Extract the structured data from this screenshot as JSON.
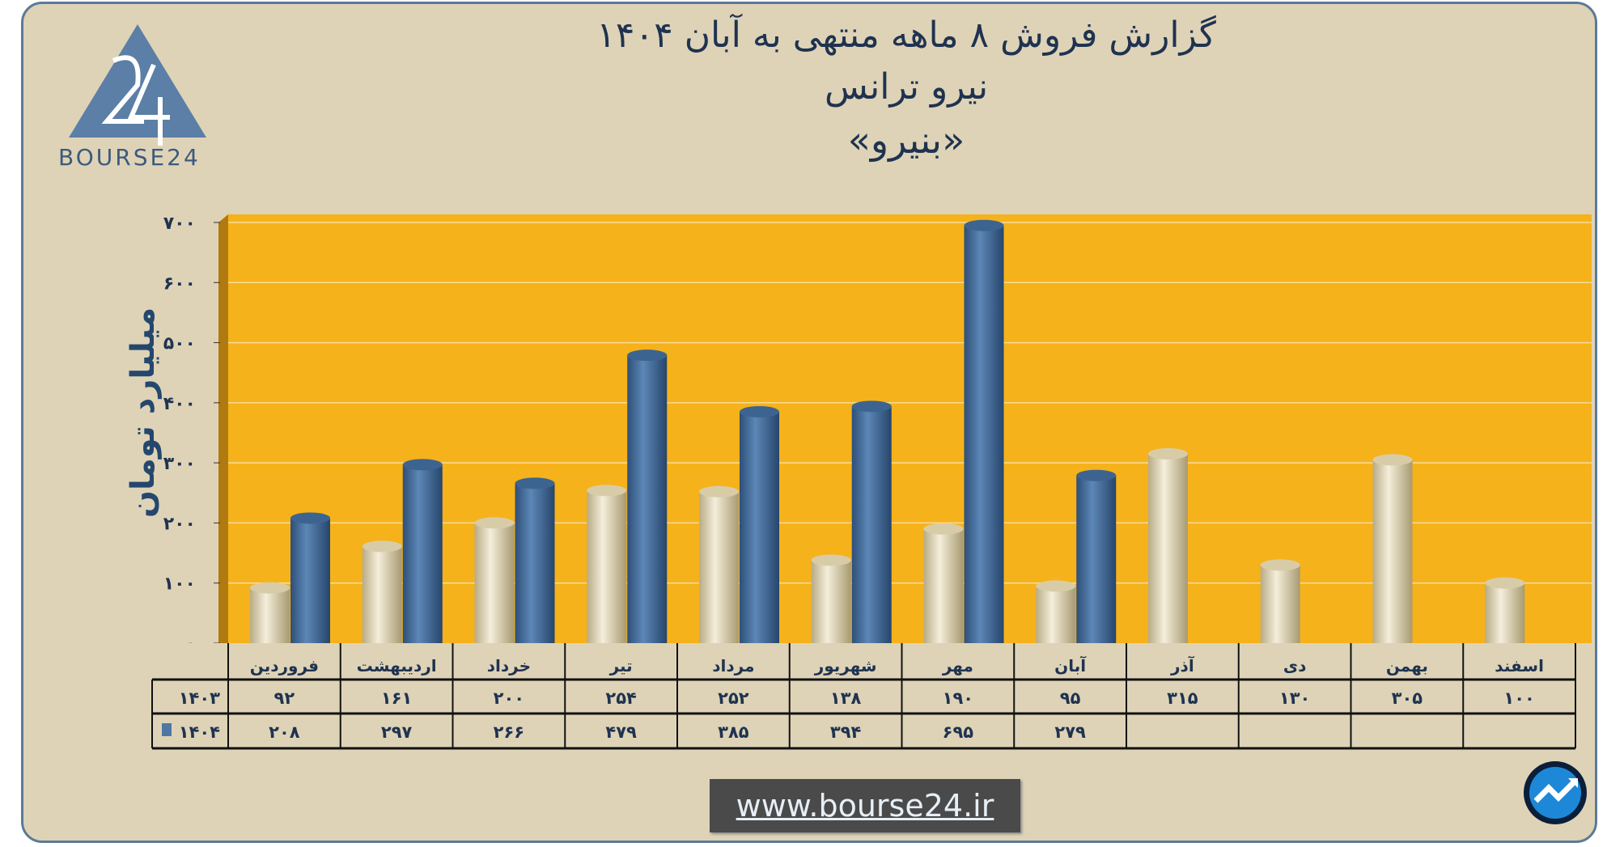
{
  "header": {
    "title_line1": "گزارش  فروش ۸ ماهه منتهی به آبان ۱۴۰۴",
    "title_line2": "نیرو ترانس",
    "title_line3": "«بنیرو»"
  },
  "logo": {
    "text": "BOURSE24"
  },
  "footer": {
    "url": "www.bourse24.ir"
  },
  "colors": {
    "series_1403": "#e6dcbc",
    "series_1404": "#4e77a3",
    "plot_bg": "#f6b21b",
    "frame_bg": "#ded3b7",
    "title": "#1f3350"
  },
  "chart_data": {
    "type": "bar",
    "style": "3d-cylinder",
    "ylabel": "میلیارد تومان",
    "ylim": [
      0,
      700
    ],
    "yticks": [
      "۰",
      "۱۰۰",
      "۲۰۰",
      "۳۰۰",
      "۴۰۰",
      "۵۰۰",
      "۶۰۰",
      "۷۰۰"
    ],
    "grid": true,
    "categories": [
      "فروردین",
      "اردیبهشت",
      "خرداد",
      "تیر",
      "مرداد",
      "شهریور",
      "مهر",
      "آبان",
      "آذر",
      "دی",
      "بهمن",
      "اسفند"
    ],
    "series": [
      {
        "name": "۱۴۰۳",
        "values": [
          92,
          161,
          200,
          254,
          252,
          138,
          190,
          95,
          315,
          130,
          305,
          100
        ],
        "labels": [
          "۹۲",
          "۱۶۱",
          "۲۰۰",
          "۲۵۴",
          "۲۵۲",
          "۱۳۸",
          "۱۹۰",
          "۹۵",
          "۳۱۵",
          "۱۳۰",
          "۳۰۵",
          "۱۰۰"
        ]
      },
      {
        "name": "۱۴۰۴",
        "values": [
          208,
          297,
          266,
          479,
          385,
          394,
          695,
          279,
          null,
          null,
          null,
          null
        ],
        "labels": [
          "۲۰۸",
          "۲۹۷",
          "۲۶۶",
          "۴۷۹",
          "۳۸۵",
          "۳۹۴",
          "۶۹۵",
          "۲۷۹",
          "",
          "",
          "",
          ""
        ]
      }
    ],
    "data_table": true
  }
}
